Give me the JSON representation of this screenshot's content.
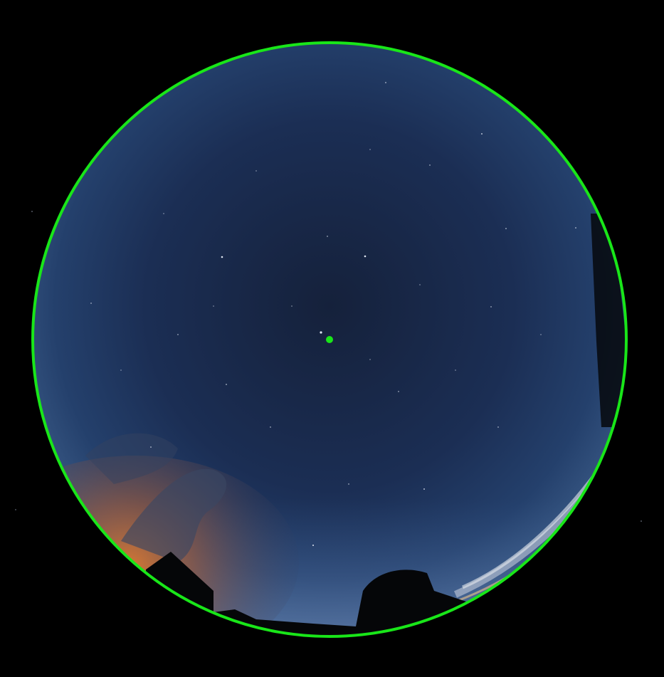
{
  "image": {
    "subject": "all-sky-fisheye-camera-frame",
    "background_color": "#000000"
  },
  "overlay": {
    "boundary_circle": {
      "shape": "circle",
      "color": "#19e619"
    },
    "center_marker": {
      "shape": "dot",
      "color": "#19e619"
    }
  },
  "palette": {
    "sky_zenith": "#14203a",
    "sky_mid": "#1a2d52",
    "sky_horizon": "#2f4d7c",
    "twilight_orange": "#c0652a",
    "silhouette": "#060709"
  }
}
